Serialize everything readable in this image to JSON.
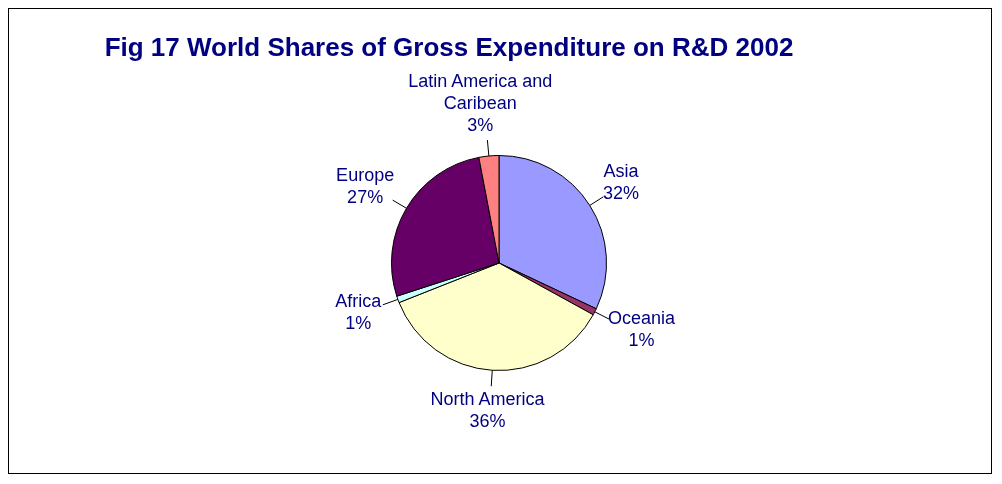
{
  "chart_data": {
    "type": "pie",
    "title": "Fig 17 World Shares of Gross Expenditure on R&D 2002",
    "categories": [
      "Asia",
      "Oceania",
      "North America",
      "Africa",
      "Europe",
      "Latin America and Caribean"
    ],
    "values": [
      32,
      1,
      36,
      1,
      27,
      3
    ],
    "value_labels": [
      "32%",
      "1%",
      "36%",
      "1%",
      "27%",
      "3%"
    ],
    "colors": [
      "#9999ff",
      "#993366",
      "#ffffcc",
      "#ccffff",
      "#660066",
      "#ff8080"
    ]
  }
}
